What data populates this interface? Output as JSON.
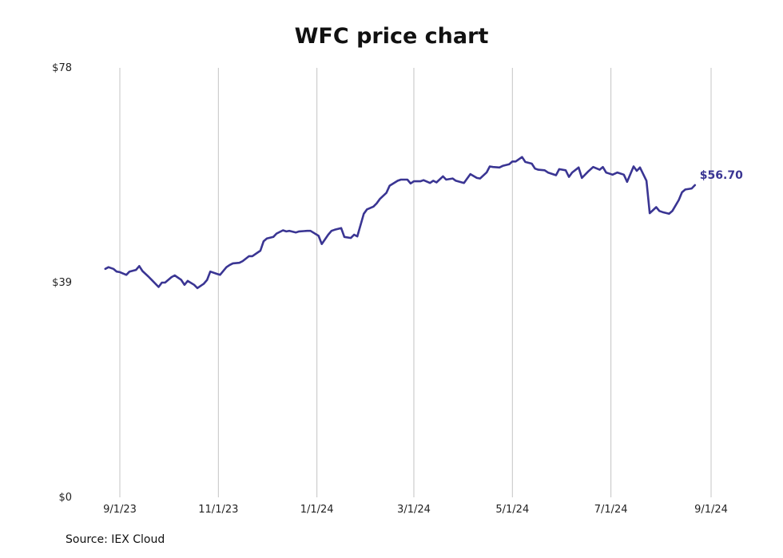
{
  "chart_data": {
    "type": "line",
    "title": "WFC price chart",
    "source": "Source: IEX Cloud",
    "xlabel": "",
    "ylabel": "",
    "x_ticks": [
      "9/1/23",
      "11/1/23",
      "1/1/24",
      "3/1/24",
      "5/1/24",
      "7/1/24",
      "9/1/24"
    ],
    "y_ticks": [
      0,
      39,
      78
    ],
    "y_tick_labels": [
      "$0",
      "$39",
      "$78"
    ],
    "ylim": [
      0,
      78
    ],
    "xlim": [
      "2023-08-26",
      "2024-09-01"
    ],
    "grid": "vertical",
    "line_color": "#3a3593",
    "end_label": "$56.70",
    "series": [
      {
        "dates": [
          "2023-08-23",
          "2023-08-25",
          "2023-08-28",
          "2023-08-30",
          "2023-09-01",
          "2023-09-05",
          "2023-09-07",
          "2023-09-11",
          "2023-09-13",
          "2023-09-15",
          "2023-09-19",
          "2023-09-21",
          "2023-09-25",
          "2023-09-27",
          "2023-09-29",
          "2023-10-03",
          "2023-10-05",
          "2023-10-09",
          "2023-10-11",
          "2023-10-13",
          "2023-10-17",
          "2023-10-19",
          "2023-10-23",
          "2023-10-25",
          "2023-10-27",
          "2023-10-31",
          "2023-11-02",
          "2023-11-06",
          "2023-11-08",
          "2023-11-10",
          "2023-11-14",
          "2023-11-16",
          "2023-11-20",
          "2023-11-22",
          "2023-11-27",
          "2023-11-29",
          "2023-12-01",
          "2023-12-05",
          "2023-12-07",
          "2023-12-11",
          "2023-12-13",
          "2023-12-15",
          "2023-12-19",
          "2023-12-21",
          "2023-12-26",
          "2023-12-28",
          "2024-01-02",
          "2024-01-04",
          "2024-01-08",
          "2024-01-10",
          "2024-01-12",
          "2024-01-16",
          "2024-01-18",
          "2024-01-22",
          "2024-01-24",
          "2024-01-26",
          "2024-01-30",
          "2024-02-01",
          "2024-02-05",
          "2024-02-07",
          "2024-02-09",
          "2024-02-13",
          "2024-02-15",
          "2024-02-20",
          "2024-02-22",
          "2024-02-26",
          "2024-02-28",
          "2024-03-01",
          "2024-03-05",
          "2024-03-07",
          "2024-03-11",
          "2024-03-13",
          "2024-03-15",
          "2024-03-19",
          "2024-03-21",
          "2024-03-25",
          "2024-03-27",
          "2024-04-01",
          "2024-04-03",
          "2024-04-05",
          "2024-04-09",
          "2024-04-11",
          "2024-04-15",
          "2024-04-17",
          "2024-04-19",
          "2024-04-23",
          "2024-04-25",
          "2024-04-29",
          "2024-05-01",
          "2024-05-03",
          "2024-05-07",
          "2024-05-09",
          "2024-05-13",
          "2024-05-15",
          "2024-05-17",
          "2024-05-21",
          "2024-05-23",
          "2024-05-28",
          "2024-05-30",
          "2024-06-03",
          "2024-06-05",
          "2024-06-07",
          "2024-06-11",
          "2024-06-13",
          "2024-06-17",
          "2024-06-20",
          "2024-06-24",
          "2024-06-26",
          "2024-06-28",
          "2024-07-02",
          "2024-07-05",
          "2024-07-09",
          "2024-07-11",
          "2024-07-15",
          "2024-07-17",
          "2024-07-19",
          "2024-07-23",
          "2024-07-25",
          "2024-07-29",
          "2024-07-31",
          "2024-08-02",
          "2024-08-06",
          "2024-08-08",
          "2024-08-12",
          "2024-08-14",
          "2024-08-16",
          "2024-08-20",
          "2024-08-22"
        ],
        "values": [
          41.5,
          41.8,
          41.5,
          41.0,
          40.9,
          40.4,
          41.0,
          41.3,
          42.0,
          41.1,
          40.0,
          39.4,
          38.2,
          39.0,
          39.0,
          40.0,
          40.3,
          39.5,
          38.6,
          39.3,
          38.6,
          38.0,
          38.8,
          39.5,
          41.0,
          40.6,
          40.4,
          41.8,
          42.2,
          42.5,
          42.6,
          42.9,
          43.8,
          43.8,
          44.8,
          46.5,
          47.0,
          47.3,
          47.9,
          48.5,
          48.3,
          48.4,
          48.1,
          48.3,
          48.4,
          48.4,
          47.5,
          46.0,
          47.7,
          48.4,
          48.6,
          48.9,
          47.3,
          47.1,
          47.7,
          47.4,
          51.5,
          52.3,
          52.8,
          53.4,
          54.2,
          55.3,
          56.6,
          57.5,
          57.7,
          57.7,
          57.0,
          57.4,
          57.4,
          57.6,
          57.1,
          57.5,
          57.2,
          58.3,
          57.7,
          57.9,
          57.5,
          57.1,
          57.9,
          58.7,
          58.0,
          57.9,
          59.0,
          60.1,
          60.0,
          59.9,
          60.2,
          60.5,
          61.0,
          61.0,
          61.8,
          60.9,
          60.6,
          59.7,
          59.5,
          59.4,
          59.0,
          58.5,
          59.6,
          59.4,
          58.2,
          59.0,
          59.9,
          58.0,
          59.2,
          60.0,
          59.5,
          60.0,
          59.0,
          58.6,
          59.0,
          58.6,
          57.3,
          60.1,
          59.3,
          59.9,
          57.5,
          51.6,
          52.7,
          52.0,
          51.8,
          51.5,
          52.0,
          54.0,
          55.4,
          55.9,
          56.1,
          56.7
        ]
      }
    ]
  }
}
